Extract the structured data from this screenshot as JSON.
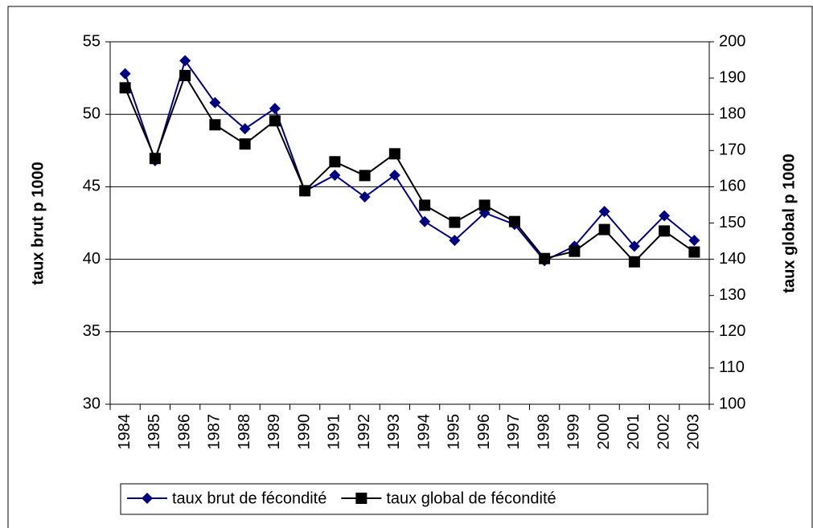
{
  "chart_data": {
    "type": "line",
    "categories": [
      "1984",
      "1985",
      "1986",
      "1987",
      "1988",
      "1989",
      "1990",
      "1991",
      "1992",
      "1993",
      "1994",
      "1995",
      "1996",
      "1997",
      "1998",
      "1999",
      "2000",
      "2001",
      "2002",
      "2003"
    ],
    "y_label": "taux brut p 1000",
    "y2_label": "taux global p 1000",
    "ylim": [
      30,
      55
    ],
    "yticks": [
      30,
      35,
      40,
      45,
      50,
      55
    ],
    "y2lim": [
      100,
      200
    ],
    "y2ticks": [
      100,
      110,
      120,
      130,
      140,
      150,
      160,
      170,
      180,
      190,
      200
    ],
    "grid": true,
    "legend": "bottom",
    "series": [
      {
        "name": "taux brut de fécondité",
        "color": "#000080",
        "marker": "diamond",
        "values": [
          52.8,
          46.8,
          53.7,
          50.8,
          49.0,
          50.4,
          44.7,
          45.8,
          44.3,
          45.8,
          42.6,
          41.3,
          43.2,
          42.4,
          39.9,
          40.9,
          43.3,
          40.9,
          43.0,
          41.3
        ]
      },
      {
        "name": "taux global de fécondité",
        "color": "#000000",
        "marker": "square",
        "axis": "y2",
        "values": [
          187.3,
          167.8,
          190.7,
          177.1,
          171.8,
          178.2,
          158.9,
          166.9,
          163.1,
          169.1,
          154.9,
          150.2,
          154.9,
          150.4,
          140.2,
          142.2,
          148.2,
          139.3,
          147.8,
          142.0
        ]
      }
    ]
  }
}
